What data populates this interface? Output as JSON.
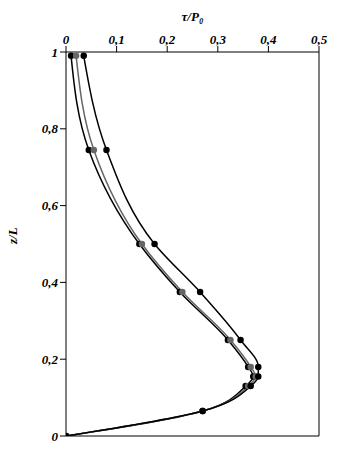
{
  "chart_data": {
    "type": "line",
    "xlabel": "τ/P₀",
    "ylabel": "z/L",
    "xlim": [
      0,
      0.5
    ],
    "xticks": [
      0,
      {
        "value": 0.1,
        "label": "0,1"
      },
      {
        "value": 0.2,
        "label": "0,2"
      },
      {
        "value": 0.3,
        "label": "0,3"
      },
      {
        "value": 0.4,
        "label": "0,4"
      },
      {
        "value": 0.5,
        "label": "0,5"
      }
    ],
    "ylim": [
      0,
      1
    ],
    "yticks": [
      0,
      {
        "value": 0.2,
        "label": "0,2"
      },
      {
        "value": 0.4,
        "label": "0,4"
      },
      {
        "value": 0.6,
        "label": "0,6"
      },
      {
        "value": 0.8,
        "label": "0,8"
      },
      1
    ],
    "grid": false,
    "series": [
      {
        "color": "#000000",
        "marker": "circle",
        "line_style": "solid",
        "x": [
          0,
          0.27,
          0.355,
          0.37,
          0.36,
          0.32,
          0.225,
          0.145,
          0.045,
          0.01
        ],
        "y": [
          0,
          0.065,
          0.13,
          0.155,
          0.18,
          0.25,
          0.375,
          0.5,
          0.745,
          0.99
        ]
      },
      {
        "color": "#666666",
        "marker": "circle",
        "line_style": "solid",
        "x": [
          0,
          0.27,
          0.36,
          0.375,
          0.365,
          0.325,
          0.23,
          0.15,
          0.055,
          0.02
        ],
        "y": [
          0,
          0.065,
          0.13,
          0.155,
          0.18,
          0.25,
          0.375,
          0.5,
          0.745,
          0.99
        ]
      },
      {
        "color": "#000000",
        "marker": "circle",
        "line_style": "solid",
        "x": [
          0,
          0.27,
          0.365,
          0.38,
          0.38,
          0.345,
          0.265,
          0.175,
          0.08,
          0.035
        ],
        "y": [
          0,
          0.065,
          0.13,
          0.155,
          0.18,
          0.25,
          0.375,
          0.5,
          0.745,
          0.99
        ]
      }
    ]
  }
}
